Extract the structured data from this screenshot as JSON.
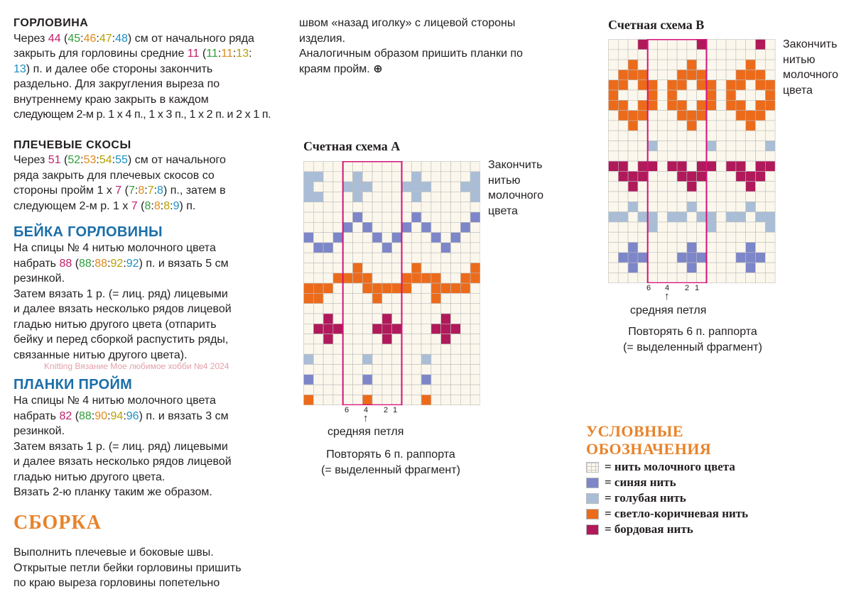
{
  "left": {
    "neck_title": "ГОРЛОВИНА",
    "neck": {
      "t1": "Через ",
      "v1": "44",
      "o1": " (",
      "v2": "45",
      ":": ":",
      "v3": "46",
      "v4": "47",
      "v5": "48",
      "t2": ") см от начального ряда",
      "t3": "закрыть для горловины средние ",
      "w1": "11",
      "w2": "11",
      "w3": "11",
      "w4": "13",
      "w5": "13",
      "t4": ") п. и далее обе стороны закончить",
      "l4": "раздельно. Для закругления выреза по",
      "l5": "внутреннему краю закрыть в каждом",
      "l6": "следующем 2-м р. 1 х 4 п., 1 х 3 п., 1 х 2 п. и 2 х 1 п."
    },
    "shoulder_title": "ПЛЕЧЕВЫЕ СКОСЫ",
    "shoulder": {
      "a": "Через ",
      "v1": "51",
      "b": " (",
      "v2": "52",
      "v3": "53",
      "v4": "54",
      "v5": "55",
      "c": ") см от начального",
      "l2": "ряда закрыть для плечевых скосов со",
      "d": "стороны пройм 1 х ",
      "x1": "7",
      "x2": "7",
      "x3": "8",
      "x4": "7",
      "x5": "8",
      "e": ") п., затем в",
      "f": "следующем 2-м р. 1 х ",
      "y1": "7",
      "y2": "8",
      "y3": "8",
      "y4": "8",
      "y5": "9",
      "g": ") п."
    },
    "band_title": "БЕЙКА ГОРЛОВИНЫ",
    "band": {
      "l1": "На спицы № 4 нитью молочного цвета",
      "a": "набрать ",
      "v1": "88",
      "b": " (",
      "v2": "88",
      "v3": "88",
      "v4": "92",
      "v5": "92",
      "c": ") п. и вязать 5 см",
      "l3": "резинкой.",
      "l4": "Затем вязать 1 р. (= лиц. ряд) лицевыми",
      "l5": "и далее вязать несколько рядов лицевой",
      "l6": "гладью нитью другого цвета (отпарить",
      "l7": "бейку и перед сборкой распустить ряды,",
      "l8": "связанные нитью другого цвета)."
    },
    "watermark": "Knitting Вязание  Мое любимое хобби №4 2024",
    "arm_title": "ПЛАНКИ ПРОЙМ",
    "arm": {
      "l1": "На спицы № 4 нитью молочного цвета",
      "a": "набрать ",
      "v1": "82",
      "b": " (",
      "v2": "88",
      "v3": "90",
      "v4": "94",
      "v5": "96",
      "c": ") п. и вязать 3 см",
      "l3": "резинкой.",
      "l4": "Затем вязать 1 р. (= лиц. ряд) лицевыми",
      "l5": "и далее вязать несколько рядов лицевой",
      "l6": "гладью нитью другого цвета.",
      "l7": "Вязать 2-ю планку таким же образом."
    },
    "assembly_title": "СБОРКА",
    "assembly": {
      "l1": "Выполнить плечевые и боковые швы.",
      "l2": "Открытые петли бейки горловины пришить",
      "l3": "по краю выреза горловины попетельно"
    }
  },
  "middle": {
    "l1": "швом «назад иголку» с лицевой стороны",
    "l2": "изделия.",
    "l3": "Аналогичным образом пришить планки по",
    "l4": "краям пройм.",
    "end_mark": "⊕"
  },
  "chartA": {
    "title": "Счетная схема А",
    "note": [
      "Закончить",
      "нитью",
      "молочного",
      "цвета"
    ],
    "ticks": [
      "6",
      "4",
      "2",
      "1"
    ],
    "arrow": "↑",
    "middle_label": "средняя петля",
    "repeat": [
      "Повторять 6 п. раппорта",
      "(= выделенный фрагмент)"
    ]
  },
  "chartB": {
    "title": "Счетная схема В",
    "note": [
      "Закончить",
      "нитью",
      "молочного",
      "цвета"
    ],
    "ticks": [
      "6",
      "4",
      "2",
      "1"
    ],
    "arrow": "↑",
    "middle_label": "средняя петля",
    "repeat": [
      "Повторять 6 п. раппорта",
      "(= выделенный фрагмент)"
    ]
  },
  "legend": {
    "title": [
      "УСЛОВНЫЕ",
      "ОБОЗНАЧЕНИЯ"
    ],
    "items": [
      {
        "label": "= нить молочного цвета",
        "color": "#fbf7ec"
      },
      {
        "label": "= синяя нить",
        "color": "#7c86c8"
      },
      {
        "label": "= голубая нить",
        "color": "#a9bdd6"
      },
      {
        "label": "= светло-коричневая нить",
        "color": "#ec6b1b"
      },
      {
        "label": "= бордовая нить",
        "color": "#b0195a"
      }
    ]
  },
  "colors": {
    "cream": "#fbf7ec",
    "grid": "#bdbdbd",
    "frame": "#d6127a"
  }
}
